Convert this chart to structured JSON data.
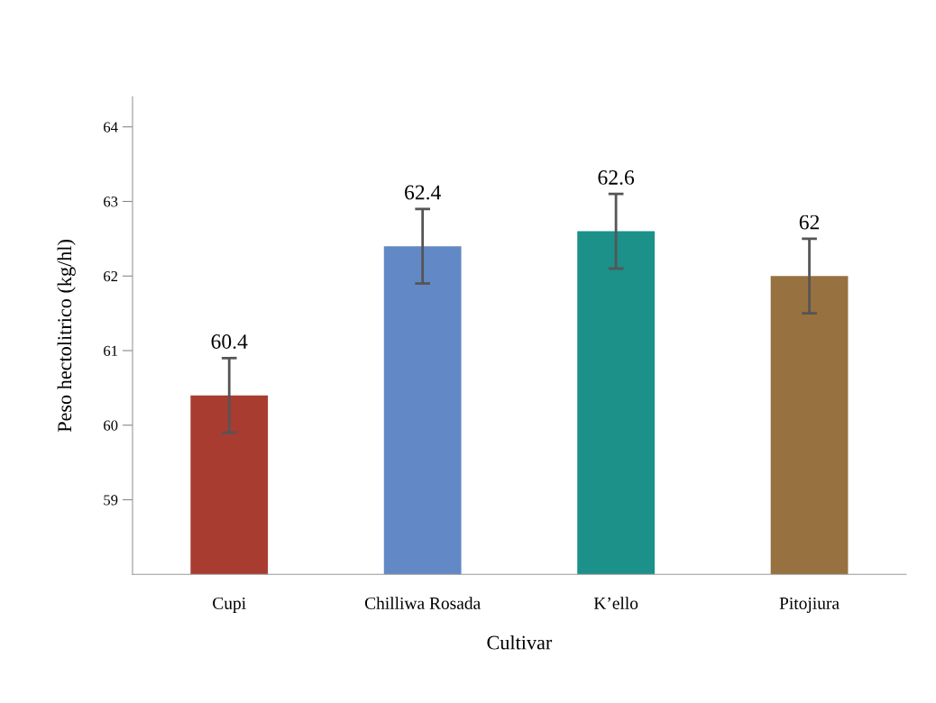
{
  "chart_data": {
    "type": "bar",
    "xlabel": "Cultivar",
    "ylabel": "Peso hectolitrico (kg/hl)",
    "categories": [
      "Cupi",
      "Chilliwa Rosada",
      "K’ello",
      "Pitojiura"
    ],
    "values": [
      60.4,
      62.4,
      62.6,
      62
    ],
    "colors": [
      "#a93c31",
      "#6289c5",
      "#1b9189",
      "#97713f"
    ],
    "errors": [
      0.5,
      0.5,
      0.5,
      0.5
    ],
    "value_labels": [
      "60.4",
      "62.4",
      "62.6",
      "62"
    ],
    "ylim": [
      58,
      64.4
    ],
    "yticks": [
      59,
      60,
      61,
      62,
      63,
      64
    ],
    "grid": false
  }
}
